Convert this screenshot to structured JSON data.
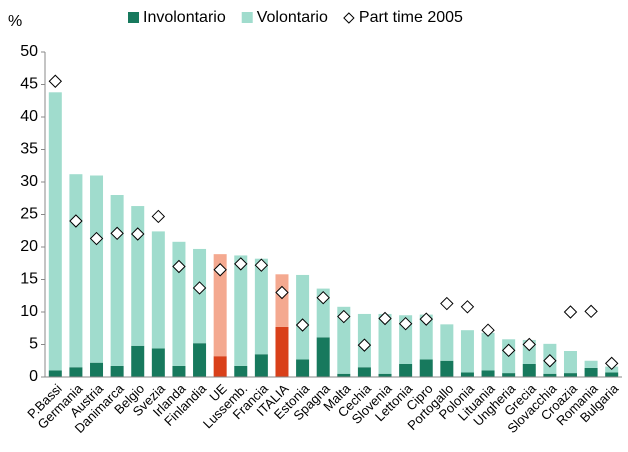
{
  "chart_data": {
    "type": "bar",
    "stacked": true,
    "y_axis_label": "%",
    "categories": [
      "P.Bassi",
      "Germania",
      "Austria",
      "Danimarca",
      "Belgio",
      "Svezia",
      "Irlanda",
      "Finlandia",
      "UE",
      "Lussemb.",
      "Francia",
      "ITALIA",
      "Estonia",
      "Spagna",
      "Malta",
      "Cechia",
      "Slovenia",
      "Lettonia",
      "Cipro",
      "Portogallo",
      "Polonia",
      "Lituania",
      "Ungheria",
      "Grecia",
      "Slovacchia",
      "Croazia",
      "Romania",
      "Bulgaria"
    ],
    "highlight_categories": [
      "UE",
      "ITALIA"
    ],
    "series": [
      {
        "name": "Involontario",
        "color": "#17795d",
        "highlight_color": "#d9401a",
        "values": [
          1.0,
          1.5,
          2.2,
          1.7,
          4.8,
          4.4,
          1.7,
          5.2,
          3.2,
          1.7,
          3.5,
          7.7,
          2.7,
          6.1,
          0.5,
          1.5,
          0.5,
          2.0,
          2.7,
          2.5,
          0.7,
          1.0,
          0.6,
          2.0,
          0.5,
          0.6,
          1.4,
          0.7
        ]
      },
      {
        "name": "Volontario",
        "color": "#a0dccd",
        "highlight_color": "#f4a990",
        "values": [
          42.8,
          29.7,
          28.8,
          26.3,
          21.5,
          18.0,
          19.1,
          14.5,
          15.7,
          17.0,
          14.7,
          8.1,
          13.0,
          7.5,
          10.3,
          8.2,
          9.2,
          7.5,
          6.9,
          5.6,
          6.5,
          5.8,
          5.2,
          3.7,
          4.6,
          3.4,
          1.1,
          0.9
        ]
      },
      {
        "name": "Part time 2005",
        "type": "marker",
        "color": "#ffffff",
        "stroke": "#000000",
        "values": [
          45.5,
          24.0,
          21.3,
          22.1,
          22.0,
          24.7,
          17.0,
          13.7,
          16.5,
          17.4,
          17.2,
          13.0,
          8.0,
          12.2,
          9.3,
          4.9,
          9.0,
          8.2,
          8.9,
          11.3,
          10.8,
          7.2,
          4.1,
          5.0,
          2.5,
          10.0,
          10.1,
          2.1
        ]
      }
    ],
    "ylim": [
      0,
      50
    ],
    "yticks": [
      0,
      5,
      10,
      15,
      20,
      25,
      30,
      35,
      40,
      45,
      50
    ],
    "grid": false
  }
}
